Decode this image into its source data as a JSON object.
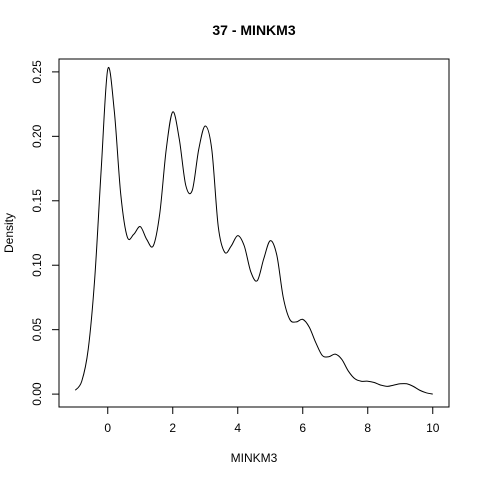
{
  "chart_data": {
    "type": "line",
    "title": "37 - MINKM3",
    "xlabel": "MINKM3",
    "ylabel": "Density",
    "xlim": [
      -1.5,
      10.5
    ],
    "ylim": [
      -0.01,
      0.26
    ],
    "x_ticks": [
      0,
      2,
      4,
      6,
      8,
      10
    ],
    "x_tick_labels": [
      "0",
      "2",
      "4",
      "6",
      "8",
      "10"
    ],
    "y_ticks": [
      0.0,
      0.05,
      0.1,
      0.15,
      0.2,
      0.25
    ],
    "y_tick_labels": [
      "0.00",
      "0.05",
      "0.10",
      "0.15",
      "0.20",
      "0.25"
    ],
    "grid": false,
    "legend": "none",
    "line_color": "#000000",
    "series": [
      {
        "x": [
          -1.0,
          -0.8,
          -0.6,
          -0.4,
          -0.2,
          0.0,
          0.2,
          0.4,
          0.6,
          0.8,
          1.0,
          1.2,
          1.4,
          1.6,
          1.8,
          2.0,
          2.2,
          2.4,
          2.6,
          2.8,
          3.0,
          3.2,
          3.4,
          3.6,
          3.8,
          4.0,
          4.2,
          4.4,
          4.6,
          4.8,
          5.0,
          5.2,
          5.4,
          5.6,
          5.8,
          6.0,
          6.2,
          6.4,
          6.6,
          6.8,
          7.0,
          7.2,
          7.4,
          7.6,
          7.8,
          8.0,
          8.2,
          8.4,
          8.6,
          8.8,
          9.0,
          9.2,
          9.4,
          9.6,
          9.8,
          10.0
        ],
        "y": [
          0.003,
          0.01,
          0.035,
          0.09,
          0.175,
          0.252,
          0.22,
          0.155,
          0.122,
          0.124,
          0.13,
          0.12,
          0.115,
          0.14,
          0.19,
          0.219,
          0.198,
          0.162,
          0.158,
          0.19,
          0.208,
          0.19,
          0.13,
          0.11,
          0.115,
          0.123,
          0.115,
          0.095,
          0.088,
          0.105,
          0.119,
          0.108,
          0.075,
          0.058,
          0.056,
          0.058,
          0.052,
          0.04,
          0.03,
          0.029,
          0.031,
          0.027,
          0.018,
          0.012,
          0.01,
          0.01,
          0.009,
          0.007,
          0.006,
          0.007,
          0.008,
          0.008,
          0.006,
          0.003,
          0.001,
          0.0
        ]
      }
    ]
  }
}
